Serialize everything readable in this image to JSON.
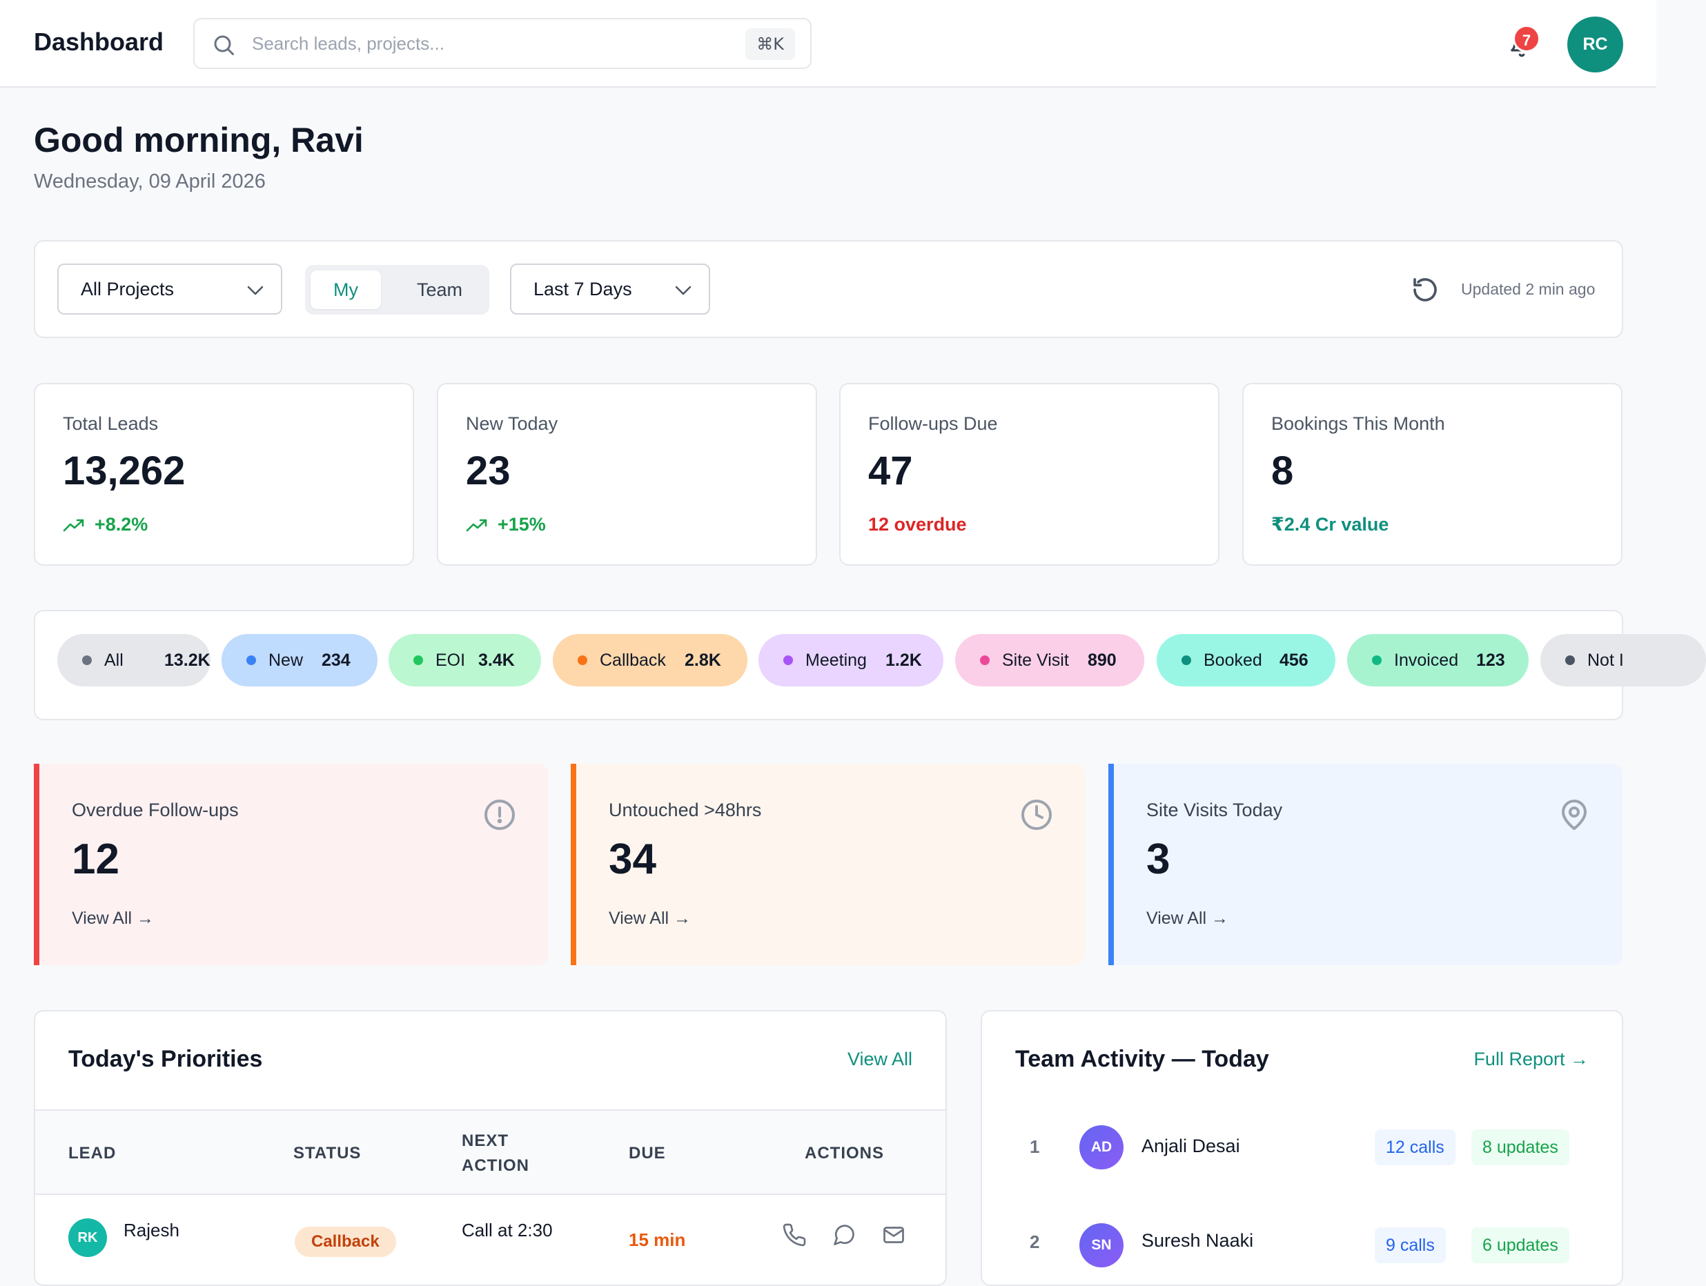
{
  "header": {
    "title": "Dashboard",
    "search_placeholder": "Search leads, projects...",
    "search_shortcut": "⌘K",
    "notification_count": "7",
    "user_initials": "RC"
  },
  "greeting": {
    "title": "Good morning, Ravi",
    "date": "Wednesday, 09 April 2026"
  },
  "filters": {
    "project": "All Projects",
    "scope_options": [
      "My",
      "Team"
    ],
    "scope_selected": "My",
    "range": "Last 7 Days",
    "updated": "Updated 2 min ago"
  },
  "kpis": [
    {
      "label": "Total Leads",
      "value": "13,262",
      "sub": "+8.2%",
      "trend": "up",
      "tone": "green"
    },
    {
      "label": "New Today",
      "value": "23",
      "sub": "+15%",
      "trend": "up",
      "tone": "green"
    },
    {
      "label": "Follow-ups Due",
      "value": "47",
      "sub": "12 overdue",
      "trend": "none",
      "tone": "red"
    },
    {
      "label": "Bookings This Month",
      "value": "8",
      "sub": "₹2.4 Cr value",
      "trend": "none",
      "tone": "teal"
    }
  ],
  "status_chips": [
    {
      "label": "All",
      "count": "13.2K",
      "bg": "#e5e7eb",
      "dot": "#6b7280"
    },
    {
      "label": "New",
      "count": "234",
      "bg": "#bfdbfe",
      "dot": "#3b82f6"
    },
    {
      "label": "EOI",
      "count": "3.4K",
      "bg": "#bbf7d0",
      "dot": "#22c55e"
    },
    {
      "label": "Callback",
      "count": "2.8K",
      "bg": "#fed7aa",
      "dot": "#f97316"
    },
    {
      "label": "Meeting",
      "count": "1.2K",
      "bg": "#e9d5ff",
      "dot": "#a855f7"
    },
    {
      "label": "Site Visit",
      "count": "890",
      "bg": "#fbcfe8",
      "dot": "#ec4899"
    },
    {
      "label": "Booked",
      "count": "456",
      "bg": "#99f6e4",
      "dot": "#0f8f7e"
    },
    {
      "label": "Invoiced",
      "count": "123",
      "bg": "#a7f3d0",
      "dot": "#10b981"
    },
    {
      "label": "Not I",
      "count": "",
      "bg": "#e5e7eb",
      "dot": "#4b5563"
    }
  ],
  "alerts": [
    {
      "label": "Overdue Follow-ups",
      "value": "12",
      "link": "View All →",
      "icon": "alert-circle-icon",
      "bg": "#fdf1f1",
      "accent": "#ef4444"
    },
    {
      "label": "Untouched >48hrs",
      "value": "34",
      "link": "View All →",
      "icon": "clock-icon",
      "bg": "#fef6ee",
      "accent": "#f97316"
    },
    {
      "label": "Site Visits Today",
      "value": "3",
      "link": "View All →",
      "icon": "map-pin-icon",
      "bg": "#eff5fe",
      "accent": "#3b82f6"
    }
  ],
  "priorities": {
    "title": "Today's Priorities",
    "link": "View All",
    "columns": [
      "LEAD",
      "STATUS",
      "NEXT\nACTION",
      "DUE",
      "ACTIONS"
    ],
    "rows": [
      {
        "initials": "RK",
        "lead": "Rajesh",
        "status": "Callback",
        "next_action": "Call at 2:30",
        "due": "15 min"
      }
    ]
  },
  "team": {
    "title": "Team Activity — Today",
    "link": "Full Report →",
    "members": [
      {
        "rank": "1",
        "initials": "AD",
        "name": "Anjali Desai",
        "calls": "12 calls",
        "updates": "8 updates"
      },
      {
        "rank": "2",
        "initials": "SN",
        "name": "Suresh Naaki",
        "calls": "9 calls",
        "updates": "6 updates"
      }
    ]
  }
}
